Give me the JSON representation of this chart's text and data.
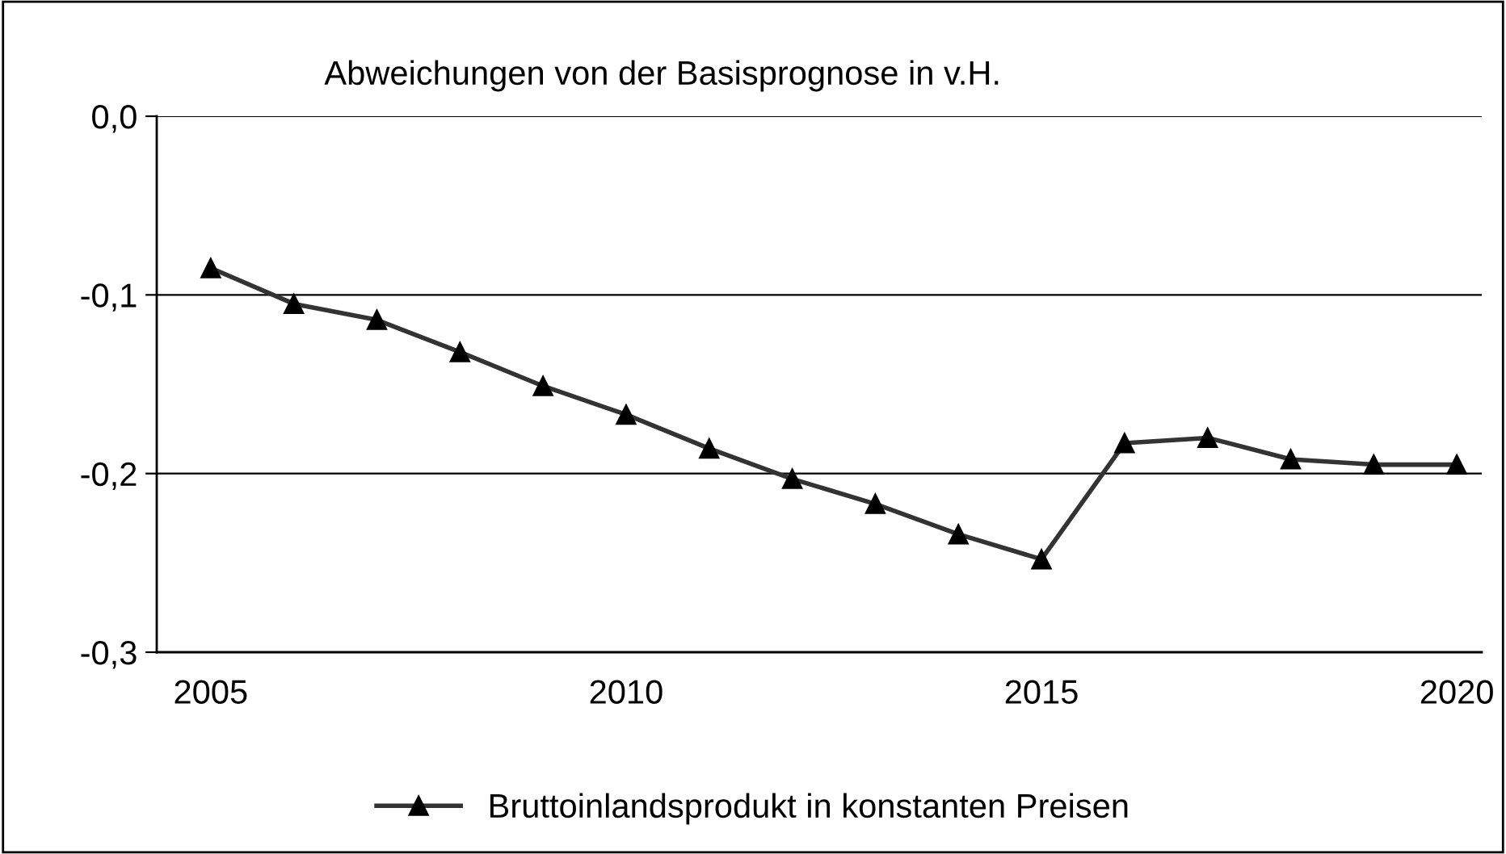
{
  "chart_data": {
    "type": "line",
    "title": "Abweichungen von der Basisprognose in v.H.",
    "x": [
      2005,
      2006,
      2007,
      2008,
      2009,
      2010,
      2011,
      2012,
      2013,
      2014,
      2015,
      2016,
      2017,
      2018,
      2019,
      2020
    ],
    "series": [
      {
        "name": "Bruttoinlandsprodukt in konstanten Preisen",
        "color": "#333333",
        "values": [
          -0.085,
          -0.105,
          -0.114,
          -0.132,
          -0.151,
          -0.167,
          -0.186,
          -0.203,
          -0.217,
          -0.234,
          -0.248,
          -0.183,
          -0.18,
          -0.192,
          -0.195,
          -0.195
        ]
      }
    ],
    "xlim": [
      2004.35,
      2020.3
    ],
    "xticks": [
      2005,
      2010,
      2015,
      2020
    ],
    "ylim": [
      -0.3,
      0.0
    ],
    "yticks": [
      {
        "value": -0.3,
        "label": "-0,3"
      },
      {
        "value": -0.2,
        "label": "-0,2"
      },
      {
        "value": -0.1,
        "label": "-0,1"
      },
      {
        "value": 0.0,
        "label": "0,0"
      }
    ],
    "grid": "y",
    "legend": "bottom",
    "marker": "triangle",
    "line_style": "solid"
  }
}
